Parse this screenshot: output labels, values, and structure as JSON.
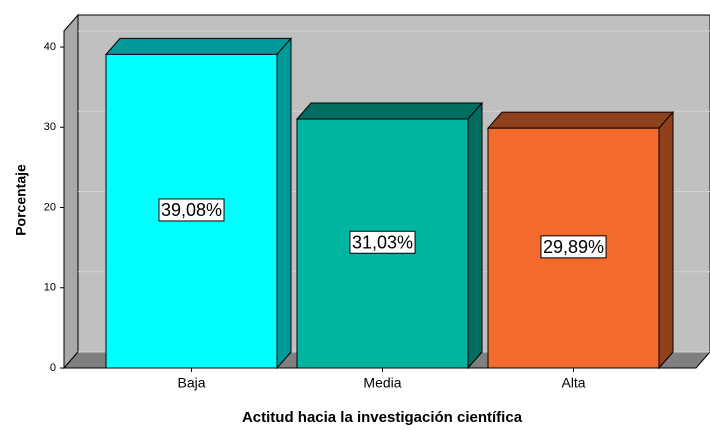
{
  "chart_data": {
    "type": "bar3d",
    "categories": [
      "Baja",
      "Media",
      "Alta"
    ],
    "values": [
      39.08,
      31.03,
      29.89
    ],
    "value_labels": [
      "39,08%",
      "31,03%",
      "29,89%"
    ],
    "colors": [
      "#00ffff",
      "#00b5a0",
      "#f26a2e"
    ],
    "ylabel": "Porcentaje",
    "xlabel": "Actitud hacia la investigación científica",
    "ylim": [
      0,
      42
    ],
    "yticks": [
      0,
      10,
      20,
      30,
      40
    ],
    "grid": true
  }
}
